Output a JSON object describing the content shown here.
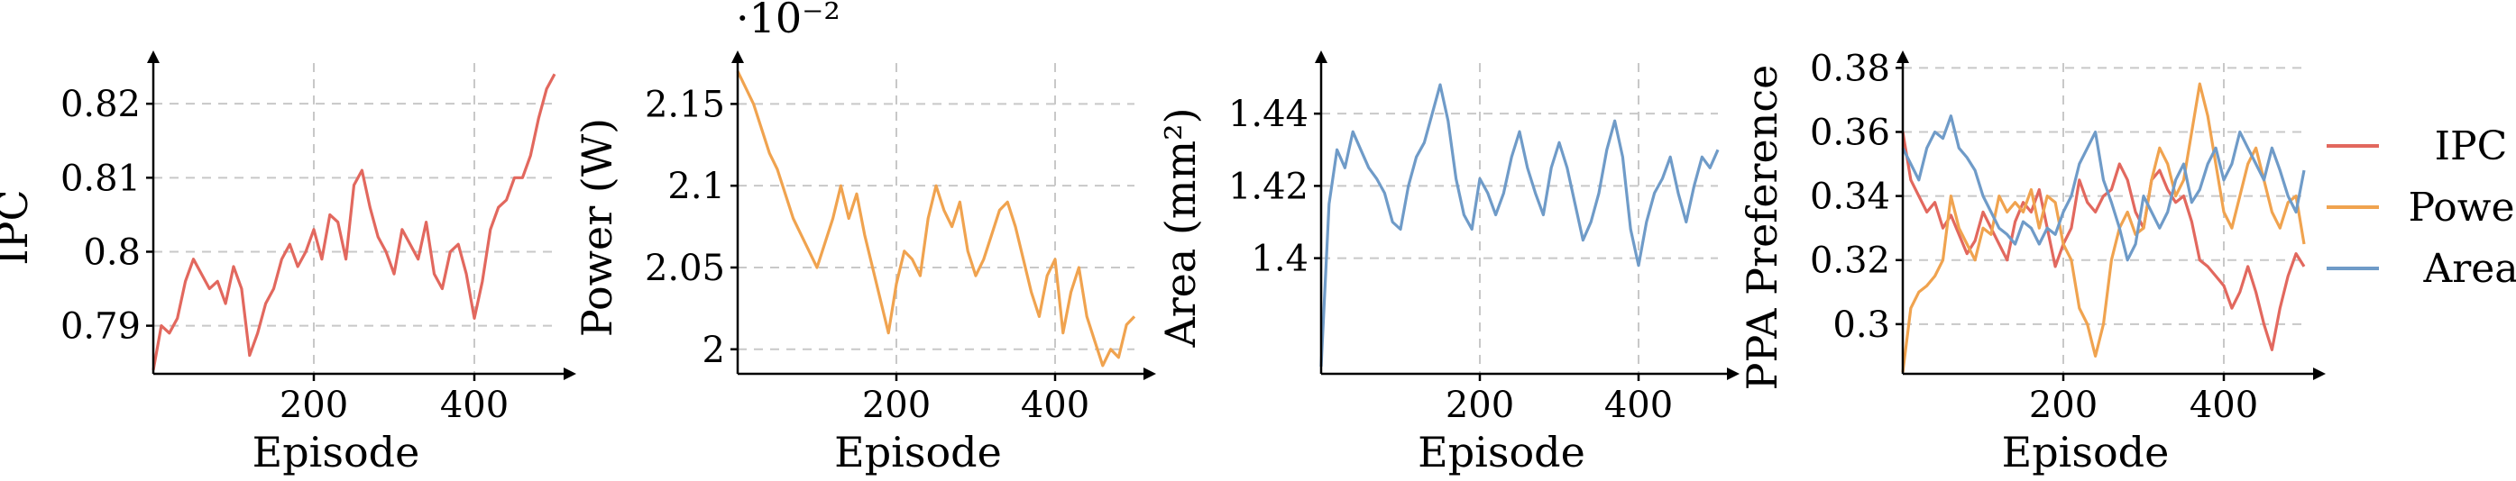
{
  "colors": {
    "IPC": "#e2685e",
    "Power": "#f0a34f",
    "Area": "#6f9bc8",
    "grid": "#c8c8c8"
  },
  "legend": {
    "items": [
      "IPC",
      "Power",
      "Area"
    ],
    "placement": "right"
  },
  "chart_data": [
    {
      "type": "line",
      "xlabel": "Episode",
      "ylabel": "IPC",
      "multiplier_label": "",
      "xlim": [
        0,
        500
      ],
      "ylim": [
        0.7835,
        0.8255
      ],
      "xticks": [
        200,
        400
      ],
      "yticks": [
        0.79,
        0.8,
        0.81,
        0.82
      ],
      "yticklabels": [
        "0.79",
        "0.8",
        "0.81",
        "0.82"
      ],
      "series": [
        {
          "key": "IPC",
          "name": "",
          "x": [
            0,
            10,
            20,
            30,
            40,
            50,
            60,
            70,
            80,
            90,
            100,
            110,
            120,
            130,
            140,
            150,
            160,
            170,
            180,
            190,
            200,
            210,
            220,
            230,
            240,
            250,
            260,
            270,
            280,
            290,
            300,
            310,
            320,
            330,
            340,
            350,
            360,
            370,
            380,
            390,
            400,
            410,
            420,
            430,
            440,
            450,
            460,
            470,
            480,
            490,
            500
          ],
          "y": [
            0.784,
            0.79,
            0.789,
            0.791,
            0.796,
            0.799,
            0.797,
            0.795,
            0.796,
            0.793,
            0.798,
            0.795,
            0.786,
            0.789,
            0.793,
            0.795,
            0.799,
            0.801,
            0.798,
            0.8,
            0.803,
            0.799,
            0.805,
            0.804,
            0.799,
            0.809,
            0.811,
            0.806,
            0.802,
            0.8,
            0.797,
            0.803,
            0.801,
            0.799,
            0.804,
            0.797,
            0.795,
            0.8,
            0.801,
            0.797,
            0.791,
            0.796,
            0.803,
            0.806,
            0.807,
            0.81,
            0.81,
            0.813,
            0.818,
            0.822,
            0.824
          ]
        }
      ]
    },
    {
      "type": "line",
      "xlabel": "Episode",
      "ylabel": "Power (W)",
      "multiplier_label": "·10⁻²",
      "xlim": [
        0,
        500
      ],
      "ylim": [
        1.985,
        2.175
      ],
      "xticks": [
        200,
        400
      ],
      "yticks": [
        2.0,
        2.05,
        2.1,
        2.15
      ],
      "yticklabels": [
        "2",
        "2.05",
        "2.1",
        "2.15"
      ],
      "series": [
        {
          "key": "Power",
          "name": "",
          "x": [
            0,
            10,
            20,
            30,
            40,
            50,
            60,
            70,
            80,
            90,
            100,
            110,
            120,
            130,
            140,
            150,
            160,
            170,
            180,
            190,
            200,
            210,
            220,
            230,
            240,
            250,
            260,
            270,
            280,
            290,
            300,
            310,
            320,
            330,
            340,
            350,
            360,
            370,
            380,
            390,
            400,
            410,
            420,
            430,
            440,
            450,
            460,
            470,
            480,
            490,
            500
          ],
          "y": [
            2.17,
            2.16,
            2.15,
            2.135,
            2.12,
            2.11,
            2.095,
            2.08,
            2.07,
            2.06,
            2.05,
            2.065,
            2.08,
            2.1,
            2.08,
            2.095,
            2.07,
            2.05,
            2.03,
            2.01,
            2.04,
            2.06,
            2.055,
            2.045,
            2.08,
            2.1,
            2.085,
            2.075,
            2.09,
            2.06,
            2.045,
            2.055,
            2.07,
            2.085,
            2.09,
            2.075,
            2.055,
            2.035,
            2.02,
            2.045,
            2.055,
            2.01,
            2.035,
            2.05,
            2.02,
            2.005,
            1.99,
            2.0,
            1.995,
            2.015,
            2.02
          ]
        }
      ]
    },
    {
      "type": "line",
      "xlabel": "Episode",
      "ylabel": "Area (mm²)",
      "multiplier_label": "",
      "xlim": [
        0,
        500
      ],
      "ylim": [
        1.368,
        1.454
      ],
      "xticks": [
        200,
        400
      ],
      "yticks": [
        1.4,
        1.42,
        1.44
      ],
      "yticklabels": [
        "1.4",
        "1.42",
        "1.44"
      ],
      "series": [
        {
          "key": "Area",
          "name": "",
          "x": [
            0,
            10,
            20,
            30,
            40,
            50,
            60,
            70,
            80,
            90,
            100,
            110,
            120,
            130,
            140,
            150,
            160,
            170,
            180,
            190,
            200,
            210,
            220,
            230,
            240,
            250,
            260,
            270,
            280,
            290,
            300,
            310,
            320,
            330,
            340,
            350,
            360,
            370,
            380,
            390,
            400,
            410,
            420,
            430,
            440,
            450,
            460,
            470,
            480,
            490,
            500
          ],
          "y": [
            1.37,
            1.415,
            1.43,
            1.425,
            1.435,
            1.43,
            1.425,
            1.422,
            1.418,
            1.41,
            1.408,
            1.42,
            1.428,
            1.432,
            1.44,
            1.448,
            1.438,
            1.422,
            1.412,
            1.408,
            1.422,
            1.418,
            1.412,
            1.418,
            1.428,
            1.435,
            1.425,
            1.418,
            1.412,
            1.425,
            1.432,
            1.425,
            1.415,
            1.405,
            1.41,
            1.418,
            1.43,
            1.438,
            1.428,
            1.408,
            1.398,
            1.41,
            1.418,
            1.422,
            1.428,
            1.418,
            1.41,
            1.42,
            1.428,
            1.425,
            1.43
          ]
        }
      ]
    },
    {
      "type": "line",
      "xlabel": "Episode",
      "ylabel": "PPA Preference",
      "multiplier_label": "",
      "xlim": [
        0,
        500
      ],
      "ylim": [
        0.2845,
        0.3815
      ],
      "xticks": [
        200,
        400
      ],
      "yticks": [
        0.3,
        0.32,
        0.34,
        0.36,
        0.38
      ],
      "yticklabels": [
        "0.3",
        "0.32",
        "0.34",
        "0.36",
        "0.38"
      ],
      "series": [
        {
          "key": "IPC",
          "name": "IPC",
          "x": [
            0,
            10,
            20,
            30,
            40,
            50,
            60,
            70,
            80,
            90,
            100,
            110,
            120,
            130,
            140,
            150,
            160,
            170,
            180,
            190,
            200,
            210,
            220,
            230,
            240,
            250,
            260,
            270,
            280,
            290,
            300,
            310,
            320,
            330,
            340,
            350,
            360,
            370,
            380,
            390,
            400,
            410,
            420,
            430,
            440,
            450,
            460,
            470,
            480,
            490,
            500
          ],
          "y": [
            0.36,
            0.345,
            0.34,
            0.335,
            0.338,
            0.33,
            0.334,
            0.328,
            0.322,
            0.326,
            0.335,
            0.33,
            0.325,
            0.32,
            0.332,
            0.338,
            0.335,
            0.342,
            0.33,
            0.318,
            0.325,
            0.33,
            0.345,
            0.338,
            0.335,
            0.34,
            0.342,
            0.35,
            0.345,
            0.335,
            0.33,
            0.345,
            0.348,
            0.342,
            0.338,
            0.34,
            0.332,
            0.32,
            0.318,
            0.315,
            0.312,
            0.305,
            0.31,
            0.318,
            0.31,
            0.3,
            0.292,
            0.305,
            0.315,
            0.322,
            0.318
          ]
        },
        {
          "key": "Power",
          "name": "Power",
          "x": [
            0,
            10,
            20,
            30,
            40,
            50,
            60,
            70,
            80,
            90,
            100,
            110,
            120,
            130,
            140,
            150,
            160,
            170,
            180,
            190,
            200,
            210,
            220,
            230,
            240,
            250,
            260,
            270,
            280,
            290,
            300,
            310,
            320,
            330,
            340,
            350,
            360,
            370,
            380,
            390,
            400,
            410,
            420,
            430,
            440,
            450,
            460,
            470,
            480,
            490,
            500
          ],
          "y": [
            0.285,
            0.305,
            0.31,
            0.312,
            0.315,
            0.32,
            0.34,
            0.33,
            0.325,
            0.32,
            0.33,
            0.328,
            0.34,
            0.335,
            0.338,
            0.335,
            0.342,
            0.33,
            0.34,
            0.338,
            0.325,
            0.32,
            0.305,
            0.3,
            0.29,
            0.3,
            0.32,
            0.33,
            0.335,
            0.328,
            0.33,
            0.345,
            0.355,
            0.35,
            0.34,
            0.345,
            0.36,
            0.375,
            0.365,
            0.35,
            0.335,
            0.33,
            0.34,
            0.35,
            0.355,
            0.345,
            0.335,
            0.33,
            0.338,
            0.34,
            0.325
          ]
        },
        {
          "key": "Area",
          "name": "Area",
          "x": [
            0,
            10,
            20,
            30,
            40,
            50,
            60,
            70,
            80,
            90,
            100,
            110,
            120,
            130,
            140,
            150,
            160,
            170,
            180,
            190,
            200,
            210,
            220,
            230,
            240,
            250,
            260,
            270,
            280,
            290,
            300,
            310,
            320,
            330,
            340,
            350,
            360,
            370,
            380,
            390,
            400,
            410,
            420,
            430,
            440,
            450,
            460,
            470,
            480,
            490,
            500
          ],
          "y": [
            0.355,
            0.35,
            0.345,
            0.355,
            0.36,
            0.358,
            0.365,
            0.355,
            0.352,
            0.348,
            0.34,
            0.335,
            0.33,
            0.328,
            0.325,
            0.332,
            0.33,
            0.325,
            0.33,
            0.328,
            0.335,
            0.34,
            0.35,
            0.355,
            0.36,
            0.345,
            0.338,
            0.33,
            0.32,
            0.325,
            0.34,
            0.335,
            0.33,
            0.335,
            0.345,
            0.35,
            0.338,
            0.342,
            0.35,
            0.355,
            0.345,
            0.35,
            0.36,
            0.355,
            0.35,
            0.345,
            0.355,
            0.348,
            0.34,
            0.335,
            0.348
          ]
        }
      ]
    }
  ]
}
